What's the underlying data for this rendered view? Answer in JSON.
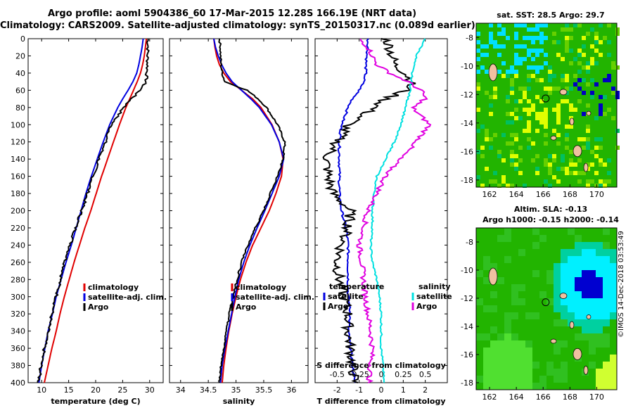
{
  "title_line1": "Argo profile: aoml 5904386_60 17-Mar-2015 12.28S 166.19E (NRT data)",
  "title_line2": "Climatology: CARS2009. Satellite-adjusted climatology: synTS_20150317.nc (0.089d earlier)",
  "map1_title": "sat. SST: 28.5 Argo: 29.7",
  "map2_title_line1": "Altim. SLA: -0.13",
  "map2_title_line2": "Argo h1000: -0.15 h2000: -0.14",
  "copyright": "©IMOS 14-Dec-2018 03:53:49",
  "colors": {
    "climatology": "#e00000",
    "satellite": "#0000e0",
    "argo": "#000000",
    "sat_diff_s": "#00e0e0",
    "argo_diff_s": "#e000e0"
  },
  "chart_data": [
    {
      "type": "line",
      "xlabel": "temperature (deg C)",
      "ylabel": "",
      "xlim": [
        7.5,
        32.5
      ],
      "ylim": [
        400,
        0
      ],
      "xticks": [
        "10",
        "15",
        "20",
        "25",
        "30"
      ],
      "yticks": [
        "0",
        "20",
        "40",
        "60",
        "80",
        "100",
        "120",
        "140",
        "160",
        "180",
        "200",
        "220",
        "240",
        "260",
        "280",
        "300",
        "320",
        "340",
        "360",
        "380",
        "400"
      ],
      "legend": [
        "climatology",
        "satellite-adj. clim.",
        "Argo"
      ],
      "depth": [
        0,
        10,
        20,
        30,
        40,
        50,
        60,
        70,
        80,
        100,
        120,
        140,
        160,
        180,
        200,
        220,
        240,
        260,
        280,
        300,
        320,
        340,
        360,
        380,
        400
      ],
      "series": [
        {
          "name": "climatology",
          "values": [
            29.4,
            29.2,
            29.0,
            28.7,
            28.3,
            27.7,
            27.0,
            26.3,
            25.6,
            24.4,
            23.3,
            22.2,
            21.1,
            20.1,
            19.1,
            18.0,
            17.0,
            16.0,
            15.1,
            14.2,
            13.4,
            12.7,
            11.9,
            11.2,
            10.5
          ]
        },
        {
          "name": "satellite-adj. clim.",
          "values": [
            28.8,
            28.6,
            28.3,
            28.0,
            27.6,
            26.9,
            26.0,
            25.0,
            24.1,
            22.6,
            21.4,
            20.3,
            19.2,
            18.2,
            17.3,
            16.4,
            15.5,
            14.5,
            13.6,
            12.7,
            12.0,
            11.2,
            10.6,
            10.0,
            9.5
          ]
        },
        {
          "name": "Argo",
          "values": [
            29.7,
            29.7,
            29.6,
            29.6,
            29.5,
            29.3,
            28.2,
            26.6,
            25.2,
            22.9,
            21.8,
            20.6,
            19.5,
            18.5,
            17.4,
            16.3,
            15.3,
            14.3,
            13.5,
            12.7,
            11.9,
            11.2,
            10.5,
            9.9,
            9.4
          ]
        }
      ]
    },
    {
      "type": "line",
      "xlabel": "salinity",
      "ylabel": "",
      "xlim": [
        33.8,
        36.3
      ],
      "ylim": [
        400,
        0
      ],
      "xticks": [
        "34",
        "34.5",
        "35",
        "35.5",
        "36"
      ],
      "legend": [
        "climatology",
        "satellite-adj. clim.",
        "Argo"
      ],
      "depth": [
        0,
        10,
        20,
        30,
        40,
        50,
        60,
        70,
        80,
        100,
        120,
        140,
        160,
        180,
        200,
        220,
        240,
        260,
        280,
        300,
        320,
        340,
        360,
        380,
        400
      ],
      "series": [
        {
          "name": "climatology",
          "values": [
            34.6,
            34.62,
            34.65,
            34.7,
            34.78,
            34.9,
            35.1,
            35.3,
            35.45,
            35.65,
            35.78,
            35.85,
            35.82,
            35.72,
            35.6,
            35.45,
            35.3,
            35.18,
            35.08,
            35.0,
            34.93,
            34.87,
            34.82,
            34.78,
            34.75
          ]
        },
        {
          "name": "satellite-adj. clim.",
          "values": [
            34.6,
            34.63,
            34.68,
            34.74,
            34.82,
            34.93,
            35.1,
            35.27,
            35.42,
            35.64,
            35.78,
            35.86,
            35.78,
            35.65,
            35.52,
            35.38,
            35.25,
            35.14,
            35.05,
            34.98,
            34.92,
            34.86,
            34.8,
            34.75,
            34.72
          ]
        },
        {
          "name": "Argo",
          "values": [
            34.7,
            34.72,
            34.72,
            34.73,
            34.75,
            34.8,
            35.2,
            35.4,
            35.55,
            35.75,
            35.88,
            35.85,
            35.75,
            35.62,
            35.5,
            35.35,
            35.22,
            35.1,
            35.02,
            34.95,
            34.88,
            34.83,
            34.78,
            34.73,
            34.7
          ]
        }
      ]
    },
    {
      "type": "line",
      "xlabel": "T difference from climatology",
      "xlabel_top": "S difference from climatology",
      "ylabel": "",
      "xlim": [
        -3,
        3
      ],
      "ylim": [
        400,
        0
      ],
      "xticks": [
        "-2",
        "-1",
        "0",
        "1",
        "2"
      ],
      "xticks_top": [
        "-0.5",
        "-0.25",
        "0",
        "0.25",
        "0.5"
      ],
      "legend_left_title": "temperature",
      "legend_right_title": "salinity",
      "legend": [
        "satellite",
        "Argo",
        "satellite",
        "Argo"
      ],
      "depth": [
        0,
        10,
        20,
        30,
        40,
        50,
        60,
        70,
        80,
        100,
        120,
        140,
        160,
        180,
        200,
        220,
        240,
        260,
        280,
        300,
        320,
        340,
        360,
        380,
        400
      ],
      "series": [
        {
          "name": "T satellite",
          "values": [
            -0.6,
            -0.6,
            -0.65,
            -0.7,
            -0.7,
            -0.8,
            -1.0,
            -1.3,
            -1.5,
            -1.8,
            -1.9,
            -1.9,
            -1.9,
            -1.9,
            -1.8,
            -1.6,
            -1.5,
            -1.5,
            -1.5,
            -1.5,
            -1.4,
            -1.5,
            -1.4,
            -1.3,
            -1.2
          ]
        },
        {
          "name": "T Argo",
          "values": [
            0.2,
            0.4,
            0.5,
            0.6,
            1.1,
            1.4,
            1.1,
            0.2,
            -0.3,
            -1.5,
            -2.0,
            -2.5,
            -2.4,
            -2.2,
            -1.4,
            -1.5,
            -1.8,
            -2.0,
            -1.9,
            -1.7,
            -1.5,
            -1.5,
            -1.4,
            -1.3,
            -1.2
          ]
        },
        {
          "name": "S satellite",
          "values": [
            0.5,
            0.45,
            0.4,
            0.37,
            0.35,
            0.34,
            0.33,
            0.3,
            0.28,
            0.22,
            0.15,
            0.05,
            -0.05,
            -0.08,
            -0.1,
            -0.1,
            -0.12,
            -0.1,
            -0.05,
            -0.02,
            0.0,
            0.0,
            0.0,
            0.02,
            0.03
          ]
        },
        {
          "name": "S Argo",
          "values": [
            -0.25,
            -0.15,
            -0.1,
            -0.05,
            0.1,
            0.3,
            0.45,
            0.5,
            0.35,
            0.55,
            0.4,
            0.2,
            0.05,
            -0.05,
            -0.15,
            -0.2,
            -0.25,
            -0.22,
            -0.2,
            -0.18,
            -0.15,
            -0.12,
            -0.1,
            -0.12,
            -0.14
          ]
        }
      ]
    },
    {
      "type": "heatmap",
      "title": "sat. SST: 28.5 Argo: 29.7",
      "x_ticks": [
        "162",
        "164",
        "166",
        "168",
        "170"
      ],
      "y_ticks": [
        "-8",
        "-10",
        "-12",
        "-14",
        "-16",
        "-18"
      ],
      "xlim": [
        161,
        171.5
      ],
      "ylim": [
        -18.5,
        -7
      ]
    },
    {
      "type": "heatmap",
      "title": "Altim. SLA: -0.13",
      "subtitle": "Argo h1000: -0.15 h2000: -0.14",
      "x_ticks": [
        "162",
        "164",
        "166",
        "168",
        "170"
      ],
      "y_ticks": [
        "-8",
        "-10",
        "-12",
        "-14",
        "-16",
        "-18"
      ],
      "xlim": [
        161,
        171.5
      ],
      "ylim": [
        -18.5,
        -7
      ]
    }
  ]
}
